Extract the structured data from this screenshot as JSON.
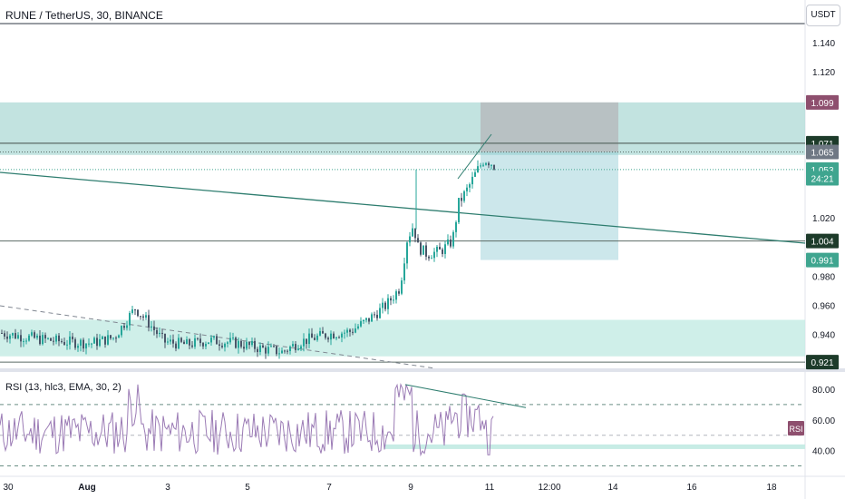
{
  "header": {
    "symbol": "RUNE / TetherUS, 30, BINANCE",
    "currency_button": "USDT"
  },
  "rsi_pane": {
    "title": "RSI (13, hlc3, EMA, 30, 2)",
    "badge": "RSI"
  },
  "chart_data": {
    "type": "candlestick",
    "ylim": [
      0.918,
      1.153
    ],
    "price_ticks": [
      "1.140",
      "1.120",
      "1.020",
      "0.980",
      "0.960",
      "0.940"
    ],
    "price_labels": [
      {
        "text": "1.099",
        "value": 1.099,
        "color": "#8e4f6e"
      },
      {
        "text": "1.071",
        "value": 1.071,
        "color": "#1d3b2a"
      },
      {
        "text": "1.065",
        "value": 1.065,
        "color": "#6f7884"
      },
      {
        "text": "1.053",
        "value": 1.053,
        "color": "#3fa58f"
      },
      {
        "text": "24:21",
        "value": 1.047,
        "color": "#3fa58f"
      },
      {
        "text": "1.004",
        "value": 1.004,
        "color": "#1d3b2a"
      },
      {
        "text": "0.991",
        "value": 0.991,
        "color": "#3fa58f"
      },
      {
        "text": "0.921",
        "value": 0.921,
        "color": "#1d3b2a"
      }
    ],
    "x_ticks": [
      "30",
      "Aug",
      "3",
      "5",
      "7",
      "9",
      "11",
      "12:00",
      "14",
      "16",
      "18"
    ],
    "zones": [
      {
        "from": 1.063,
        "to": 1.099,
        "color": "#b7dedb"
      },
      {
        "from": 0.925,
        "to": 0.95,
        "color": "#c7ece5"
      }
    ],
    "position": {
      "entry": 1.065,
      "stop": 1.099,
      "target": 0.991
    },
    "horizontal_levels": [
      1.071,
      1.065,
      1.053,
      1.004,
      0.921
    ],
    "rsi": {
      "ticks": [
        "80.00",
        "60.00",
        "40.00"
      ],
      "levels": [
        70,
        50,
        30
      ],
      "range": [
        25,
        90
      ],
      "divergence_line": true
    },
    "colors": {
      "up": "#26a69a",
      "down": "#4a5568",
      "rsi": "#9b7bb5"
    }
  }
}
